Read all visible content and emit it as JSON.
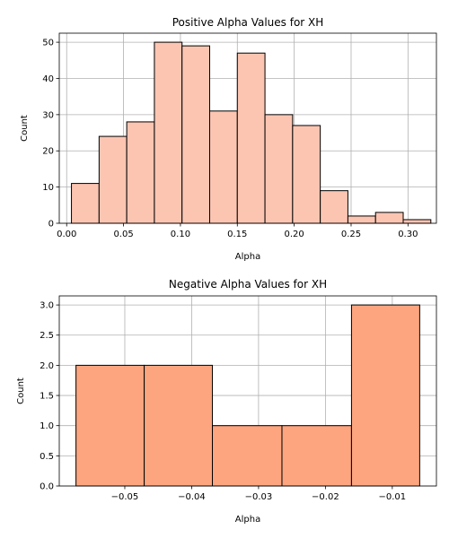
{
  "chart_data": [
    {
      "type": "bar",
      "title": "Positive Alpha Values for XH",
      "xlabel": "Alpha",
      "ylabel": "Count",
      "xlim": [
        -0.0065,
        0.325
      ],
      "ylim": [
        0,
        52.5
      ],
      "xticks": [
        "0.00",
        "0.05",
        "0.10",
        "0.15",
        "0.20",
        "0.25",
        "0.30"
      ],
      "yticks": [
        "0",
        "10",
        "20",
        "30",
        "40",
        "50"
      ],
      "bin_edges": [
        0.0042,
        0.0285,
        0.0528,
        0.0771,
        0.1014,
        0.1257,
        0.15,
        0.1743,
        0.1986,
        0.2229,
        0.2472,
        0.2715,
        0.2958,
        0.3201
      ],
      "values": [
        11,
        24,
        28,
        50,
        49,
        31,
        47,
        30,
        27,
        9,
        2,
        3,
        1
      ],
      "bar_color": "#fcc5b2",
      "edge_color": "#000000",
      "grid": true
    },
    {
      "type": "bar",
      "title": "Negative Alpha Values for XH",
      "xlabel": "Alpha",
      "ylabel": "Count",
      "xlim": [
        -0.0598,
        -0.0034
      ],
      "ylim": [
        0,
        3.15
      ],
      "xticks": [
        "−0.05",
        "−0.04",
        "−0.03",
        "−0.02",
        "−0.01"
      ],
      "yticks": [
        "0.0",
        "0.5",
        "1.0",
        "1.5",
        "2.0",
        "2.5",
        "3.0"
      ],
      "bin_edges": [
        -0.0573,
        -0.0471,
        -0.0369,
        -0.0265,
        -0.0161,
        -0.0059
      ],
      "values": [
        2,
        2,
        1,
        1,
        3
      ],
      "bar_color": "#fca57f",
      "edge_color": "#000000",
      "grid": true
    }
  ]
}
